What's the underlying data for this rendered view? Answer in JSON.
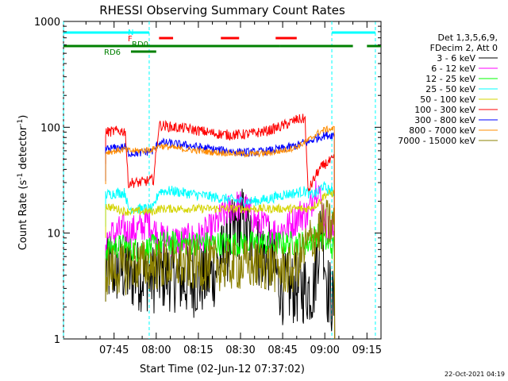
{
  "chart_data": {
    "type": "line",
    "title": "RHESSI Observing Summary Count Rates",
    "xlabel": "Start Time (02-Jun-12 07:37:02)",
    "ylabel_main": "Count Rate (s",
    "ylabel_sup1": "-1",
    "ylabel_mid": " detector",
    "ylabel_sup2": "-1",
    "ylabel_end": ")",
    "yscale": "log",
    "ylim": [
      1,
      1000
    ],
    "xlim_minutes": [
      447,
      560
    ],
    "x_tick_labels": [
      "07:45",
      "08:00",
      "08:15",
      "08:30",
      "08:45",
      "09:00",
      "09:15"
    ],
    "x_tick_minutes": [
      465,
      480,
      495,
      510,
      525,
      540,
      555
    ],
    "y_tick_labels": [
      "1",
      "10",
      "100",
      "1000"
    ],
    "y_tick_values": [
      1,
      10,
      100,
      1000
    ],
    "legend_header": [
      "Det 1,3,5,6,9,",
      "FDecim 2, Att 0"
    ],
    "legend_placement": "right",
    "footer_timestamp": "22-Oct-2021 04:19",
    "flags": {
      "night_label": "N",
      "flare_label": "F",
      "rd0_label": "RD0",
      "rd6_label": "RD6"
    },
    "night_boundaries_minutes": [
      447,
      477.5,
      542.5,
      558
    ],
    "series": [
      {
        "name": "3 - 6 keV",
        "color": "#000000",
        "x": [
          462,
          466,
          469,
          470,
          476,
          479,
          481,
          486,
          490,
          495,
          500,
          505,
          508,
          511,
          515,
          520,
          523,
          525,
          528,
          532,
          536,
          537.5,
          539,
          541,
          543.5
        ],
        "y": [
          4.5,
          4.5,
          4.5,
          4,
          4,
          3.8,
          4,
          4,
          3.5,
          3.5,
          4,
          7,
          11,
          13,
          7,
          6,
          4,
          3,
          3,
          3,
          3,
          7,
          12,
          3,
          2
        ]
      },
      {
        "name": "6 - 12 keV",
        "color": "#ff00ff",
        "x": [
          462,
          466,
          469,
          470,
          474,
          477,
          479,
          481,
          486,
          490,
          495,
          500,
          505,
          508,
          510,
          512,
          515,
          520,
          523,
          525,
          528,
          531,
          534,
          536,
          537.5,
          539,
          541,
          543.5
        ],
        "y": [
          9,
          10,
          11,
          10,
          11,
          13,
          11,
          9,
          8.5,
          8.5,
          9,
          11,
          16,
          18,
          18,
          17,
          13,
          11,
          10,
          11,
          12,
          15,
          15,
          23,
          30,
          17,
          11,
          10
        ]
      },
      {
        "name": "12 - 25 keV",
        "color": "#00ff00",
        "x": [
          462,
          466,
          469,
          470,
          476,
          479,
          481,
          486,
          490,
          495,
          500,
          505,
          510,
          515,
          520,
          525,
          530,
          534,
          537.5,
          541,
          543.5
        ],
        "y": [
          7,
          7.5,
          7.5,
          7,
          7,
          7.5,
          8,
          8,
          8,
          8,
          8,
          8,
          8,
          8,
          8,
          8,
          8,
          8,
          10,
          8,
          7
        ]
      },
      {
        "name": "25 - 50 keV",
        "color": "#00ffff",
        "x": [
          462,
          466,
          469,
          470,
          472,
          479,
          481,
          486,
          490,
          495,
          500,
          505,
          510,
          515,
          520,
          525,
          530,
          533,
          535,
          537.5,
          539,
          541,
          543.5
        ],
        "y": [
          23,
          24,
          24,
          17,
          17,
          17,
          25,
          25,
          24,
          23,
          22,
          21,
          20,
          20,
          21,
          23,
          24,
          25,
          23,
          24,
          28,
          26,
          24
        ]
      },
      {
        "name": "50 - 100 keV",
        "color": "#d4d400",
        "x": [
          462,
          466,
          469,
          470,
          479,
          481,
          486,
          490,
          495,
          500,
          505,
          510,
          515,
          520,
          525,
          530,
          534,
          537.5,
          540,
          543.5
        ],
        "y": [
          18,
          17,
          16,
          16,
          16,
          17,
          17,
          17,
          17,
          17,
          17,
          17,
          17,
          17,
          17,
          17,
          17,
          19,
          23,
          24
        ]
      },
      {
        "name": "100 - 300 keV",
        "color": "#ff0000",
        "x": [
          462,
          466,
          469,
          470,
          474,
          479,
          481,
          486,
          490,
          495,
          500,
          505,
          510,
          515,
          520,
          525,
          530,
          533,
          534,
          535,
          537.5,
          540,
          543.5
        ],
        "y": [
          90,
          92,
          92,
          30,
          30,
          32,
          105,
          100,
          98,
          93,
          88,
          85,
          85,
          88,
          93,
          103,
          118,
          120,
          25,
          28,
          38,
          45,
          50
        ]
      },
      {
        "name": "300 - 800 keV",
        "color": "#0000ff",
        "x": [
          462,
          466,
          469,
          470,
          474,
          479,
          481,
          486,
          490,
          495,
          500,
          505,
          510,
          515,
          520,
          525,
          530,
          533,
          534,
          537.5,
          540,
          543.5
        ],
        "y": [
          62,
          64,
          65,
          57,
          57,
          60,
          72,
          70,
          68,
          65,
          62,
          60,
          58,
          58,
          60,
          63,
          67,
          73,
          72,
          80,
          84,
          85
        ]
      },
      {
        "name": "800 - 7000 keV",
        "color": "#ff8c00",
        "x": [
          462,
          466,
          469,
          470,
          474,
          479,
          481,
          486,
          490,
          495,
          500,
          505,
          510,
          515,
          520,
          525,
          530,
          533,
          534,
          537.5,
          540,
          543.5
        ],
        "y": [
          58,
          60,
          62,
          60,
          60,
          62,
          67,
          64,
          62,
          60,
          58,
          57,
          56,
          56,
          57,
          60,
          65,
          72,
          75,
          88,
          95,
          97
        ]
      },
      {
        "name": "7000 - 15000 keV",
        "color": "#8b8000",
        "x": [
          462,
          466,
          469,
          470,
          474,
          479,
          481,
          486,
          490,
          495,
          500,
          505,
          510,
          515,
          520,
          525,
          528,
          530,
          533,
          534,
          537.5,
          540,
          543.5
        ],
        "y": [
          4.5,
          4.5,
          4.5,
          5,
          5,
          5,
          5,
          5,
          5,
          5,
          5,
          5,
          5,
          5,
          5,
          4.5,
          4.5,
          5,
          7,
          8,
          10,
          12,
          12
        ]
      }
    ],
    "flag_bars": {
      "night": {
        "color": "#00ffff",
        "segments": [
          [
            447,
            477.5
          ],
          [
            542.5,
            558
          ]
        ]
      },
      "flare": {
        "color": "#ff0000",
        "segments": [
          [
            481,
            486
          ],
          [
            503,
            509.5
          ],
          [
            522.5,
            530
          ]
        ]
      },
      "rd0": {
        "color": "#008000",
        "segments": [
          [
            447,
            524
          ],
          [
            524,
            534
          ],
          [
            533,
            550
          ],
          [
            555,
            560
          ]
        ]
      },
      "rd6": {
        "color": "#008000",
        "segments": [
          [
            471,
            480
          ]
        ]
      }
    }
  }
}
